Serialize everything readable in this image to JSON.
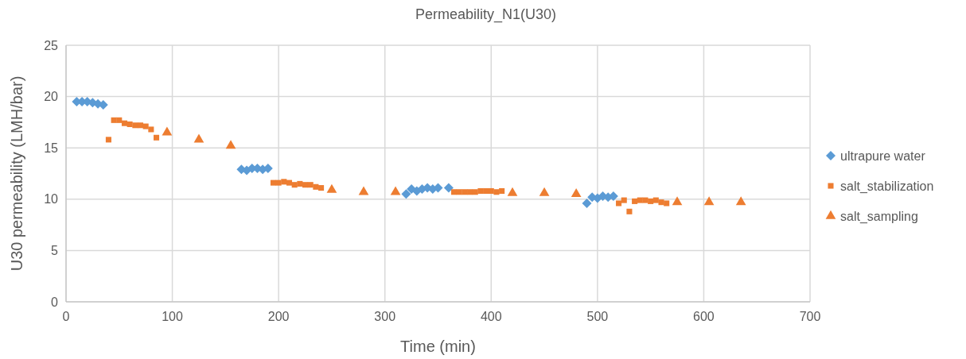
{
  "chart_data": {
    "type": "scatter",
    "title": "Permeability_N1(U30)",
    "xlabel": "Time (min)",
    "ylabel": "U30 permeability (LMH/bar)",
    "xlim": [
      0,
      700
    ],
    "xticks": [
      0,
      100,
      200,
      300,
      400,
      500,
      600,
      700
    ],
    "ylim": [
      0,
      25
    ],
    "yticks": [
      0,
      5,
      10,
      15,
      20,
      25
    ],
    "grid": true,
    "legend": "right",
    "series": [
      {
        "name": "ultrapure water",
        "color": "#5b9bd5",
        "marker": "diamond",
        "x": [
          10,
          15,
          20,
          25,
          30,
          35,
          165,
          170,
          175,
          180,
          185,
          190,
          320,
          325,
          330,
          335,
          340,
          345,
          350,
          360,
          490,
          495,
          500,
          505,
          510,
          515
        ],
        "values": [
          19.5,
          19.5,
          19.5,
          19.4,
          19.3,
          19.2,
          12.9,
          12.8,
          13.0,
          13.0,
          12.9,
          13.0,
          10.5,
          11.0,
          10.8,
          11.0,
          11.1,
          11.0,
          11.1,
          11.1,
          9.6,
          10.2,
          10.1,
          10.3,
          10.2,
          10.3
        ]
      },
      {
        "name": "salt_stabilization",
        "color": "#ed7d31",
        "marker": "square",
        "x": [
          40,
          45,
          50,
          55,
          60,
          65,
          70,
          75,
          80,
          85,
          195,
          200,
          205,
          210,
          215,
          220,
          225,
          230,
          235,
          240,
          365,
          370,
          375,
          380,
          385,
          390,
          395,
          400,
          405,
          410,
          520,
          525,
          530,
          535,
          540,
          545,
          550,
          555,
          560,
          565
        ],
        "values": [
          15.8,
          17.7,
          17.7,
          17.4,
          17.3,
          17.2,
          17.2,
          17.1,
          16.8,
          16.0,
          11.6,
          11.6,
          11.7,
          11.6,
          11.4,
          11.5,
          11.4,
          11.4,
          11.2,
          11.1,
          10.7,
          10.7,
          10.7,
          10.7,
          10.7,
          10.8,
          10.8,
          10.8,
          10.7,
          10.8,
          9.6,
          9.9,
          8.8,
          9.8,
          9.9,
          9.9,
          9.8,
          9.9,
          9.7,
          9.6
        ]
      },
      {
        "name": "salt_sampling",
        "color": "#ed7d31",
        "marker": "triangle",
        "x": [
          95,
          125,
          155,
          250,
          280,
          310,
          420,
          450,
          480,
          575,
          605,
          635
        ],
        "values": [
          16.5,
          15.8,
          15.2,
          10.9,
          10.7,
          10.7,
          10.6,
          10.6,
          10.5,
          9.7,
          9.7,
          9.7
        ]
      }
    ]
  }
}
